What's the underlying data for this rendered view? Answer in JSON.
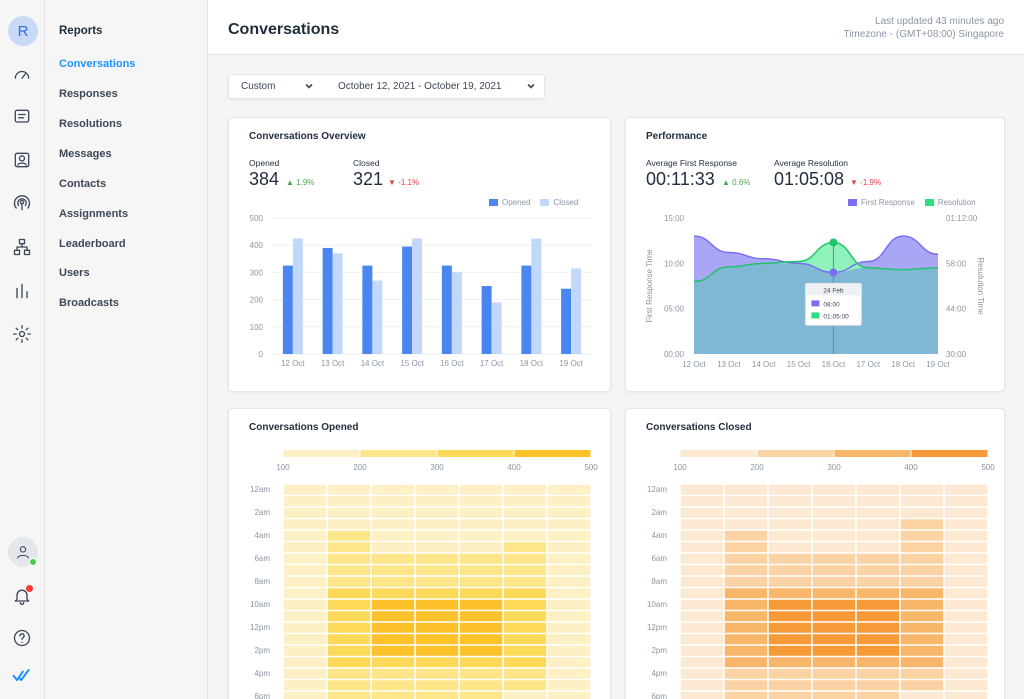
{
  "rail": {
    "avatar_letter": "R"
  },
  "nav": {
    "title": "Reports",
    "items": [
      "Conversations",
      "Responses",
      "Resolutions",
      "Messages",
      "Contacts",
      "Assignments",
      "Leaderboard",
      "Users",
      "Broadcasts"
    ],
    "active_index": 0
  },
  "header": {
    "title": "Conversations",
    "last_updated": "Last updated 43 minutes ago",
    "timezone": "Timezone - (GMT+08:00) Singapore"
  },
  "filter": {
    "range_type": "Custom",
    "date_range": "October 12, 2021 - October 19, 2021"
  },
  "colors": {
    "accent": "#1f93ff",
    "opened": "#4a86f0",
    "closed": "#c2d8fb",
    "first_response": "#7a6ff0",
    "resolution": "#2ee07d",
    "up": "#44a84b",
    "down": "#e0414c"
  },
  "overview": {
    "title": "Conversations Overview",
    "opened_label": "Opened",
    "opened_value": "384",
    "opened_delta": "1.9%",
    "closed_label": "Closed",
    "closed_value": "321",
    "closed_delta": "-1.1%",
    "legend_opened": "Opened",
    "legend_closed": "Closed"
  },
  "performance": {
    "title": "Performance",
    "afr_label": "Average First Response",
    "afr_value": "00:11:33",
    "afr_delta": "0.6%",
    "ar_label": "Average Resolution",
    "ar_value": "01:05:08",
    "ar_delta": "-1.9%",
    "legend_first": "First Response",
    "legend_resolution": "Resolution",
    "tooltip": {
      "date": "24 Feb",
      "first": "08:00",
      "resolution": "01:05:00"
    }
  },
  "opened_heatmap": {
    "title": "Conversations Opened"
  },
  "closed_heatmap": {
    "title": "Conversations Closed"
  },
  "chart_data": [
    {
      "type": "bar",
      "title": "Conversations Overview",
      "categories": [
        "12 Oct",
        "13 Oct",
        "14 Oct",
        "15 Oct",
        "16 Oct",
        "17 Oct",
        "18 Oct",
        "19 Oct"
      ],
      "series": [
        {
          "name": "Opened",
          "values": [
            325,
            390,
            325,
            395,
            325,
            250,
            325,
            240
          ]
        },
        {
          "name": "Closed",
          "values": [
            425,
            370,
            270,
            425,
            300,
            190,
            425,
            315
          ]
        }
      ],
      "yticks": [
        "0",
        "100",
        "200",
        "300",
        "400",
        "500"
      ],
      "ylim": [
        0,
        500
      ],
      "legend": "top-right",
      "grid": true
    },
    {
      "type": "area",
      "title": "Performance",
      "categories": [
        "12 Oct",
        "13 Oct",
        "14 Oct",
        "15 Oct",
        "16 Oct",
        "17 Oct",
        "18 Oct",
        "19 Oct"
      ],
      "series": [
        {
          "name": "First Response",
          "axis": "left",
          "values": [
            13.0,
            11.2,
            10.5,
            10.0,
            9.0,
            10.2,
            13.0,
            11.0
          ]
        },
        {
          "name": "Resolution",
          "axis": "left",
          "values": [
            8.0,
            9.6,
            10.0,
            10.2,
            12.3,
            9.5,
            9.3,
            9.5
          ]
        }
      ],
      "left_ticks": [
        "00:00",
        "05:00",
        "10:00",
        "15:00"
      ],
      "right_ticks": [
        "30:00",
        "44:00",
        "58:00",
        "01:12:00"
      ],
      "ylabel": "First Response Time",
      "y2label": "Resolution Time",
      "ylim": [
        0,
        15
      ],
      "legend": "top-right"
    },
    {
      "type": "heatmap",
      "title": "Conversations Opened",
      "color_scale": [
        "#fdf0c4",
        "#fde68a",
        "#fdd95a",
        "#fdc22a"
      ],
      "scale_ticks": [
        "100",
        "200",
        "300",
        "400",
        "500"
      ],
      "rows": [
        "12am",
        "",
        "2am",
        "",
        "4am",
        "",
        "6am",
        "",
        "8am",
        "",
        "10am",
        "",
        "12pm",
        "",
        "2pm",
        "",
        "4pm",
        "",
        "6pm"
      ],
      "values": [
        [
          1,
          1,
          1,
          1,
          1,
          1,
          1
        ],
        [
          1,
          1,
          1,
          1,
          1,
          1,
          1
        ],
        [
          1,
          1,
          1,
          1,
          1,
          1,
          1
        ],
        [
          1,
          1,
          1,
          1,
          1,
          1,
          1
        ],
        [
          1,
          2,
          1,
          1,
          1,
          1,
          1
        ],
        [
          1,
          2,
          1,
          1,
          1,
          2,
          1
        ],
        [
          1,
          2,
          2,
          2,
          2,
          2,
          1
        ],
        [
          1,
          2,
          2,
          2,
          2,
          2,
          1
        ],
        [
          1,
          2,
          2,
          2,
          2,
          2,
          1
        ],
        [
          1,
          3,
          3,
          3,
          3,
          3,
          1
        ],
        [
          1,
          3,
          4,
          4,
          4,
          3,
          1
        ],
        [
          1,
          3,
          4,
          4,
          4,
          3,
          1
        ],
        [
          1,
          3,
          4,
          4,
          4,
          3,
          1
        ],
        [
          1,
          3,
          4,
          4,
          4,
          3,
          1
        ],
        [
          1,
          3,
          4,
          4,
          4,
          3,
          1
        ],
        [
          1,
          3,
          3,
          3,
          3,
          3,
          1
        ],
        [
          1,
          2,
          2,
          2,
          2,
          2,
          1
        ],
        [
          1,
          2,
          2,
          2,
          2,
          2,
          1
        ],
        [
          1,
          2,
          2,
          2,
          2,
          1,
          1
        ]
      ]
    },
    {
      "type": "heatmap",
      "title": "Conversations Closed",
      "color_scale": [
        "#fde9d2",
        "#fbd2a4",
        "#f8b66a",
        "#f59a36"
      ],
      "scale_ticks": [
        "100",
        "200",
        "300",
        "400",
        "500"
      ],
      "rows": [
        "12am",
        "",
        "2am",
        "",
        "4am",
        "",
        "6am",
        "",
        "8am",
        "",
        "10am",
        "",
        "12pm",
        "",
        "2pm",
        "",
        "4pm",
        "",
        "6pm"
      ],
      "values": [
        [
          1,
          1,
          1,
          1,
          1,
          1,
          1
        ],
        [
          1,
          1,
          1,
          1,
          1,
          1,
          1
        ],
        [
          1,
          1,
          1,
          1,
          1,
          1,
          1
        ],
        [
          1,
          1,
          1,
          1,
          1,
          2,
          1
        ],
        [
          1,
          2,
          1,
          1,
          1,
          2,
          1
        ],
        [
          1,
          2,
          1,
          1,
          1,
          2,
          1
        ],
        [
          1,
          2,
          2,
          2,
          2,
          2,
          1
        ],
        [
          1,
          2,
          2,
          2,
          2,
          2,
          1
        ],
        [
          1,
          2,
          2,
          2,
          2,
          2,
          1
        ],
        [
          1,
          3,
          3,
          3,
          3,
          3,
          1
        ],
        [
          1,
          3,
          4,
          4,
          4,
          3,
          1
        ],
        [
          1,
          3,
          4,
          4,
          4,
          3,
          1
        ],
        [
          1,
          3,
          4,
          4,
          4,
          3,
          1
        ],
        [
          1,
          3,
          4,
          4,
          4,
          3,
          1
        ],
        [
          1,
          3,
          4,
          4,
          4,
          3,
          1
        ],
        [
          1,
          3,
          3,
          3,
          3,
          3,
          1
        ],
        [
          1,
          2,
          2,
          2,
          2,
          2,
          1
        ],
        [
          1,
          2,
          2,
          2,
          2,
          2,
          1
        ],
        [
          1,
          2,
          2,
          2,
          2,
          1,
          1
        ]
      ]
    }
  ]
}
